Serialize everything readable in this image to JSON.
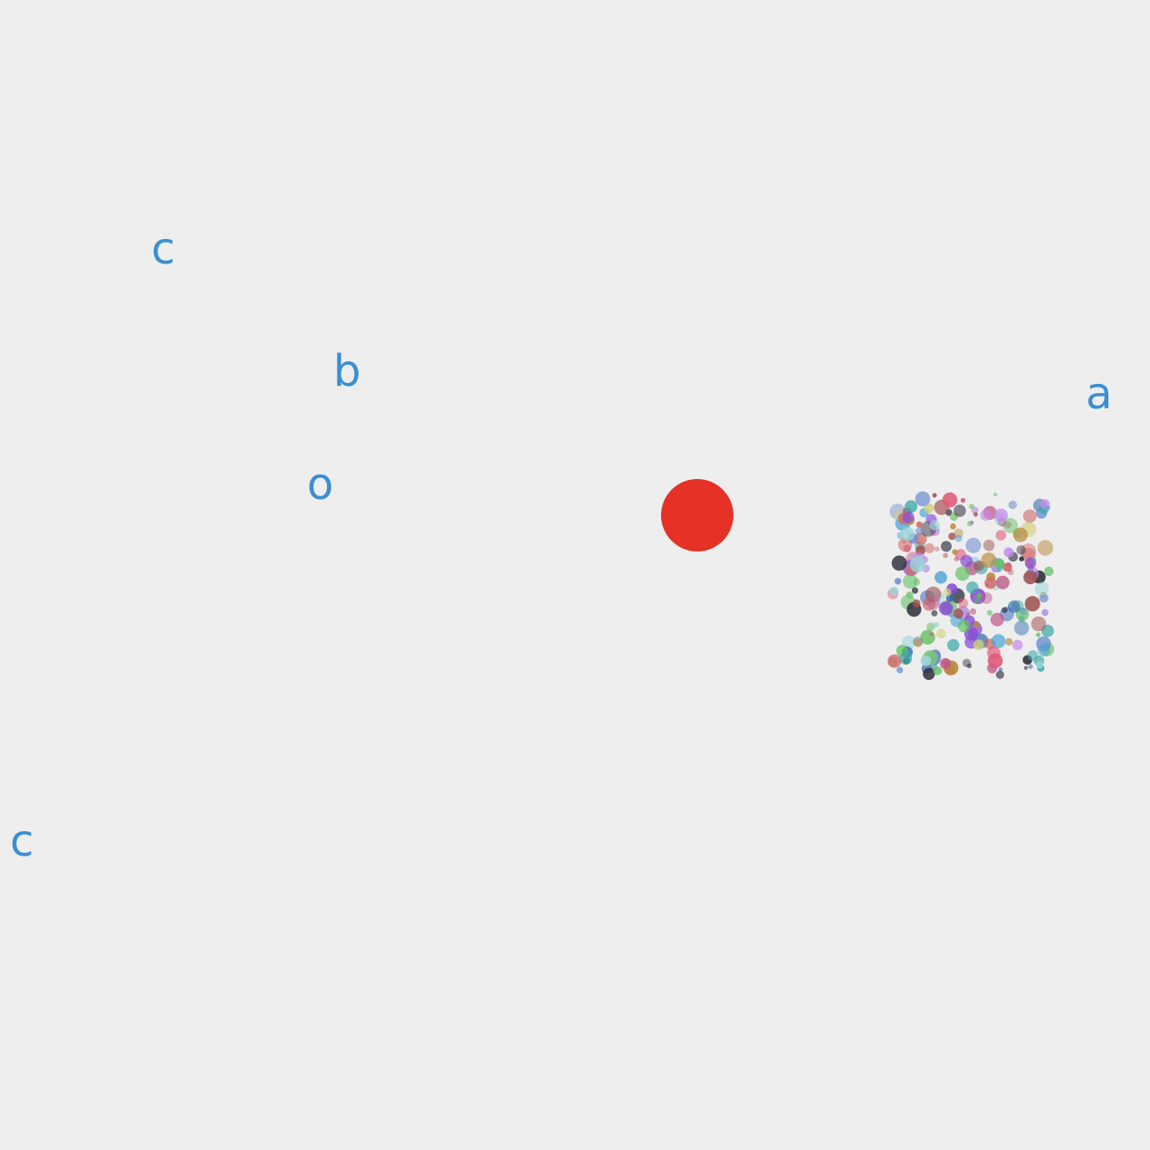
{
  "letters": {
    "c_top": "c",
    "b": "b",
    "a": "a",
    "o": "o",
    "c_bottom": "c"
  },
  "colors": {
    "background": "#eeeeee",
    "letter": "#3b8fd0",
    "player": "#e53126",
    "particles": [
      "#8a4fd6",
      "#5fbf5f",
      "#6f8fd0",
      "#c05a8a",
      "#3faaa8",
      "#d06a6a",
      "#2d2d3a",
      "#b98a3a",
      "#c48be8",
      "#4aa3d4",
      "#e05a7a",
      "#7ac47a",
      "#a05050",
      "#3a6fb0",
      "#d0d07a",
      "#9ad6d6"
    ]
  }
}
